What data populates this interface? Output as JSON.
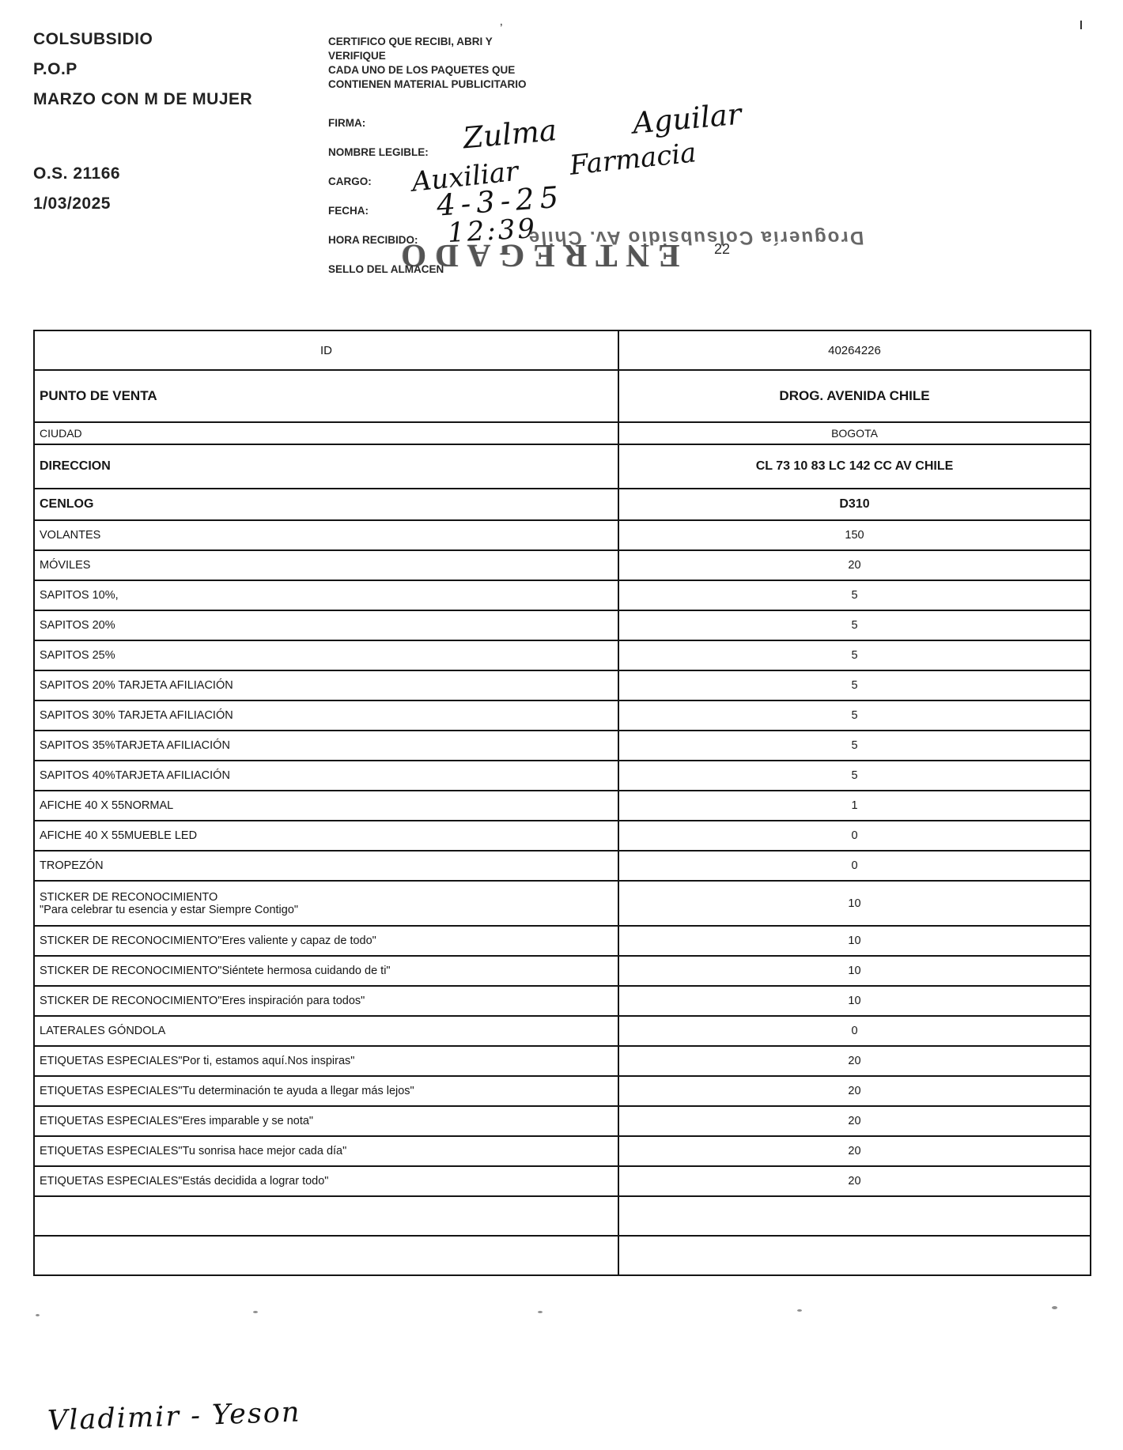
{
  "document": {
    "header_left": {
      "company": "COLSUBSIDIO",
      "program": "P.O.P",
      "campaign": "MARZO CON M DE MUJER",
      "order": "O.S. 21166",
      "date": "1/03/2025"
    },
    "certification": {
      "lines": [
        "CERTIFICO QUE RECIBI, ABRI Y",
        "VERIFIQUE",
        "CADA  UNO DE LOS PAQUETES QUE",
        "CONTIENEN MATERIAL PUBLICITARIO"
      ]
    },
    "form_labels": {
      "firma": "FIRMA:",
      "nombre": "NOMBRE LEGIBLE:",
      "cargo": "CARGO:",
      "fecha": "FECHA:",
      "hora": "HORA RECIBIDO:",
      "sello": "SELLO DEL ALMACEN"
    },
    "handwritten": {
      "nombre": "Zulma Aguilar",
      "cargo": "Auxiliar Farmacia",
      "fecha": "4-3-25",
      "hora": "12:39",
      "footer": "Vladimir - Yeson"
    },
    "stamps": {
      "almacen": "Droguería Colsubsidio Av. Chile",
      "entregado": "ENTREGADO",
      "page_number": "22"
    }
  },
  "table": {
    "rows": [
      {
        "kind": "id",
        "label": "ID",
        "value": "40264226"
      },
      {
        "kind": "punto",
        "label": "PUNTO DE VENTA",
        "value": "DROG. AVENIDA CHILE"
      },
      {
        "kind": "ciudad",
        "label": "CIUDAD",
        "value": "BOGOTA"
      },
      {
        "kind": "direccion",
        "label": "DIRECCION",
        "value": "CL 73 10 83 LC 142 CC AV CHILE"
      },
      {
        "kind": "cenlog",
        "label": "CENLOG",
        "value": "D310"
      },
      {
        "kind": "item",
        "label": "VOLANTES",
        "value": "150"
      },
      {
        "kind": "item",
        "label": "MÓVILES",
        "value": "20"
      },
      {
        "kind": "item",
        "label": "SAPITOS 10%,",
        "value": "5"
      },
      {
        "kind": "item",
        "label": "SAPITOS 20%",
        "value": "5"
      },
      {
        "kind": "item",
        "label": "SAPITOS 25%",
        "value": "5"
      },
      {
        "kind": "item",
        "label": "SAPITOS 20% TARJETA AFILIACIÓN",
        "value": "5"
      },
      {
        "kind": "item",
        "label": "SAPITOS 30% TARJETA AFILIACIÓN",
        "value": "5"
      },
      {
        "kind": "item",
        "label": "SAPITOS 35%TARJETA AFILIACIÓN",
        "value": "5"
      },
      {
        "kind": "item",
        "label": "SAPITOS 40%TARJETA AFILIACIÓN",
        "value": "5"
      },
      {
        "kind": "item",
        "label": "AFICHE 40 X 55NORMAL",
        "value": "1"
      },
      {
        "kind": "item",
        "label": "AFICHE 40 X 55MUEBLE LED",
        "value": "0"
      },
      {
        "kind": "item",
        "label": "TROPEZÓN",
        "value": "0"
      },
      {
        "kind": "item2",
        "label": "STICKER DE RECONOCIMIENTO",
        "label2": "\"Para celebrar tu esencia y estar Siempre Contigo\"",
        "value": "10"
      },
      {
        "kind": "item",
        "label": "STICKER DE RECONOCIMIENTO\"Eres valiente y capaz de todo\"",
        "value": "10"
      },
      {
        "kind": "item",
        "label": "STICKER DE RECONOCIMIENTO\"Siéntete hermosa cuidando de ti\"",
        "value": "10"
      },
      {
        "kind": "item",
        "label": "STICKER DE RECONOCIMIENTO\"Eres inspiración para todos\"",
        "value": "10"
      },
      {
        "kind": "item",
        "label": "LATERALES GÓNDOLA",
        "value": "0"
      },
      {
        "kind": "item",
        "label": "ETIQUETAS ESPECIALES\"Por ti, estamos aquí.Nos inspiras\"",
        "value": "20"
      },
      {
        "kind": "item",
        "label": "ETIQUETAS ESPECIALES\"Tu determinación te ayuda a llegar más lejos\"",
        "value": "20"
      },
      {
        "kind": "item",
        "label": "ETIQUETAS ESPECIALES\"Eres imparable y se nota\"",
        "value": "20"
      },
      {
        "kind": "item",
        "label": "ETIQUETAS ESPECIALES\"Tu sonrisa hace mejor cada día\"",
        "value": "20"
      },
      {
        "kind": "item",
        "label": "ETIQUETAS ESPECIALES\"Estás decidida a lograr todo\"",
        "value": "20"
      },
      {
        "kind": "empty",
        "label": "",
        "value": ""
      },
      {
        "kind": "empty",
        "label": "",
        "value": ""
      }
    ]
  }
}
